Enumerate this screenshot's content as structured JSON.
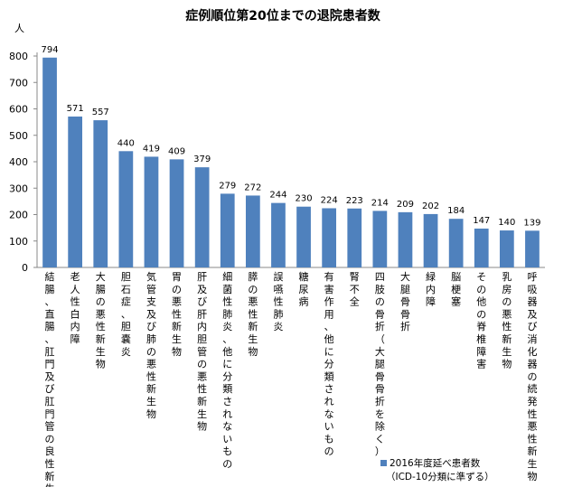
{
  "chart_data": {
    "type": "bar",
    "title": "症例順位第20位までの退院患者数",
    "ylabel": "人",
    "xlabel": "",
    "ylim": [
      0,
      800
    ],
    "yticks": [
      0,
      100,
      200,
      300,
      400,
      500,
      600,
      700,
      800
    ],
    "grid": false,
    "legend_position": "bottom-right",
    "bar_color": "#4f81bd",
    "categories": [
      "結腸、直腸、肛門及び肛門管の良性新生物",
      "老人性白内障",
      "大腸の悪性新生物",
      "胆石症、胆嚢炎",
      "気管支及び肺の悪性新生物",
      "胃の悪性新生物",
      "肝及び肝内胆管の悪性新生物",
      "細菌性肺炎、他に分類されないもの",
      "膵の悪性新生物",
      "誤嚥性肺炎",
      "糖尿病",
      "有害作用、他に分類されないもの",
      "腎不全",
      "四肢の骨折（大腿骨骨折を除く）",
      "大腿骨骨折",
      "緑内障",
      "脳梗塞",
      "その他の脊椎障害",
      "乳房の悪性新生物",
      "呼吸器及び消化器の続発性悪性新生物"
    ],
    "series": [
      {
        "name": "2016年度延べ患者数（ICD-10分類に準ずる）",
        "values": [
          794,
          571,
          557,
          440,
          419,
          409,
          379,
          279,
          272,
          244,
          230,
          224,
          223,
          214,
          209,
          202,
          184,
          147,
          140,
          139
        ]
      }
    ],
    "legend": {
      "line1": "2016年度延べ患者数",
      "line2": "（ICD-10分類に準ずる）"
    }
  }
}
